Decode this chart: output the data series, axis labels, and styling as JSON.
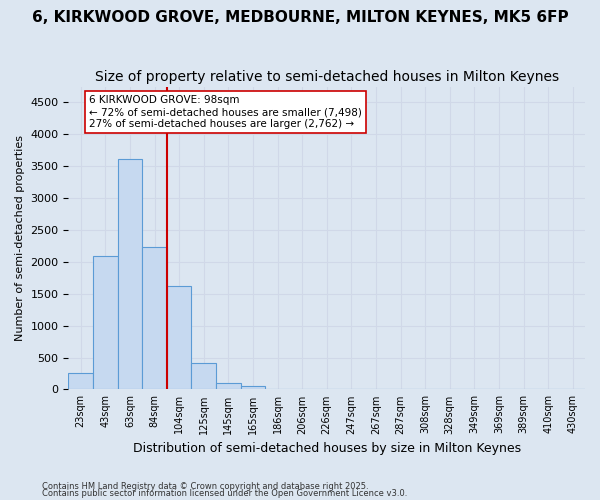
{
  "title": "6, KIRKWOOD GROVE, MEDBOURNE, MILTON KEYNES, MK5 6FP",
  "subtitle": "Size of property relative to semi-detached houses in Milton Keynes",
  "xlabel": "Distribution of semi-detached houses by size in Milton Keynes",
  "ylabel": "Number of semi-detached properties",
  "bins": [
    "23sqm",
    "43sqm",
    "63sqm",
    "84sqm",
    "104sqm",
    "125sqm",
    "145sqm",
    "165sqm",
    "186sqm",
    "206sqm",
    "226sqm",
    "247sqm",
    "267sqm",
    "287sqm",
    "308sqm",
    "328sqm",
    "349sqm",
    "369sqm",
    "389sqm",
    "410sqm",
    "430sqm"
  ],
  "bar_values": [
    250,
    2100,
    3620,
    2230,
    1620,
    420,
    100,
    60,
    0,
    0,
    0,
    0,
    0,
    0,
    0,
    0,
    0,
    0,
    0,
    0,
    0
  ],
  "bar_color": "#c6d9f0",
  "bar_edge_color": "#5B9BD5",
  "grid_color": "#d0d8e8",
  "background_color": "#dce6f1",
  "vline_color": "#cc0000",
  "vline_pos": 3.5,
  "annotation_title": "6 KIRKWOOD GROVE: 98sqm",
  "annotation_line1": "← 72% of semi-detached houses are smaller (7,498)",
  "annotation_line2": "27% of semi-detached houses are larger (2,762) →",
  "annotation_box_color": "#ffffff",
  "annotation_box_edge": "#cc0000",
  "ylim": [
    0,
    4750
  ],
  "yticks": [
    0,
    500,
    1000,
    1500,
    2000,
    2500,
    3000,
    3500,
    4000,
    4500
  ],
  "footnote1": "Contains HM Land Registry data © Crown copyright and database right 2025.",
  "footnote2": "Contains public sector information licensed under the Open Government Licence v3.0.",
  "title_fontsize": 11,
  "subtitle_fontsize": 10
}
